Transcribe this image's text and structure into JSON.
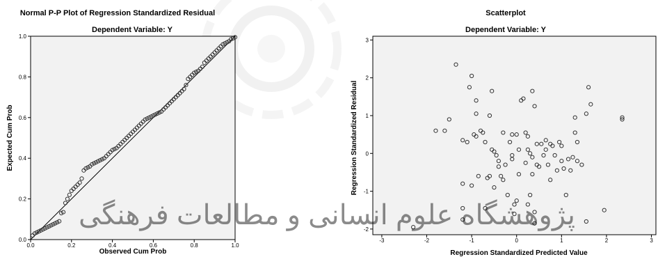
{
  "chart_data": [
    {
      "type": "scatter",
      "title": "Normal P-P Plot of Regression Standardized Residual",
      "subtitle": "Dependent Variable: Y",
      "xlabel": "Observed Cum Prob",
      "ylabel": "Expected Cum Prob",
      "xlim": [
        0,
        1
      ],
      "ylim": [
        0,
        1
      ],
      "xticks": [
        "0.0",
        "0.2",
        "0.4",
        "0.6",
        "0.8",
        "1.0"
      ],
      "yticks": [
        "0.0",
        "0.2",
        "0.4",
        "0.6",
        "0.8",
        "1.0"
      ],
      "grid": false,
      "reference_line": [
        [
          0,
          0
        ],
        [
          1,
          1
        ]
      ],
      "background": "#f2f2f2",
      "points": [
        [
          0.01,
          0.02
        ],
        [
          0.02,
          0.03
        ],
        [
          0.03,
          0.035
        ],
        [
          0.04,
          0.04
        ],
        [
          0.05,
          0.045
        ],
        [
          0.06,
          0.05
        ],
        [
          0.07,
          0.055
        ],
        [
          0.08,
          0.06
        ],
        [
          0.09,
          0.065
        ],
        [
          0.1,
          0.07
        ],
        [
          0.11,
          0.075
        ],
        [
          0.12,
          0.08
        ],
        [
          0.13,
          0.085
        ],
        [
          0.14,
          0.09
        ],
        [
          0.15,
          0.13
        ],
        [
          0.16,
          0.135
        ],
        [
          0.17,
          0.18
        ],
        [
          0.18,
          0.2
        ],
        [
          0.19,
          0.22
        ],
        [
          0.2,
          0.24
        ],
        [
          0.21,
          0.25
        ],
        [
          0.22,
          0.26
        ],
        [
          0.23,
          0.27
        ],
        [
          0.24,
          0.28
        ],
        [
          0.25,
          0.3
        ],
        [
          0.26,
          0.34
        ],
        [
          0.27,
          0.35
        ],
        [
          0.28,
          0.355
        ],
        [
          0.29,
          0.36
        ],
        [
          0.3,
          0.37
        ],
        [
          0.31,
          0.375
        ],
        [
          0.32,
          0.38
        ],
        [
          0.33,
          0.385
        ],
        [
          0.34,
          0.39
        ],
        [
          0.35,
          0.395
        ],
        [
          0.36,
          0.4
        ],
        [
          0.37,
          0.41
        ],
        [
          0.38,
          0.42
        ],
        [
          0.39,
          0.43
        ],
        [
          0.4,
          0.44
        ],
        [
          0.41,
          0.445
        ],
        [
          0.42,
          0.45
        ],
        [
          0.43,
          0.46
        ],
        [
          0.44,
          0.47
        ],
        [
          0.45,
          0.48
        ],
        [
          0.46,
          0.49
        ],
        [
          0.47,
          0.5
        ],
        [
          0.48,
          0.51
        ],
        [
          0.49,
          0.52
        ],
        [
          0.5,
          0.53
        ],
        [
          0.51,
          0.54
        ],
        [
          0.52,
          0.55
        ],
        [
          0.53,
          0.56
        ],
        [
          0.54,
          0.57
        ],
        [
          0.55,
          0.58
        ],
        [
          0.56,
          0.59
        ],
        [
          0.57,
          0.595
        ],
        [
          0.58,
          0.6
        ],
        [
          0.59,
          0.605
        ],
        [
          0.6,
          0.61
        ],
        [
          0.61,
          0.615
        ],
        [
          0.62,
          0.62
        ],
        [
          0.63,
          0.625
        ],
        [
          0.64,
          0.63
        ],
        [
          0.65,
          0.64
        ],
        [
          0.66,
          0.65
        ],
        [
          0.67,
          0.66
        ],
        [
          0.68,
          0.67
        ],
        [
          0.69,
          0.68
        ],
        [
          0.7,
          0.69
        ],
        [
          0.71,
          0.7
        ],
        [
          0.72,
          0.71
        ],
        [
          0.73,
          0.72
        ],
        [
          0.74,
          0.73
        ],
        [
          0.75,
          0.74
        ],
        [
          0.76,
          0.76
        ],
        [
          0.77,
          0.79
        ],
        [
          0.78,
          0.8
        ],
        [
          0.79,
          0.81
        ],
        [
          0.8,
          0.82
        ],
        [
          0.81,
          0.825
        ],
        [
          0.82,
          0.83
        ],
        [
          0.83,
          0.84
        ],
        [
          0.84,
          0.85
        ],
        [
          0.85,
          0.87
        ],
        [
          0.86,
          0.88
        ],
        [
          0.87,
          0.89
        ],
        [
          0.88,
          0.9
        ],
        [
          0.89,
          0.91
        ],
        [
          0.9,
          0.92
        ],
        [
          0.91,
          0.93
        ],
        [
          0.92,
          0.94
        ],
        [
          0.93,
          0.95
        ],
        [
          0.94,
          0.96
        ],
        [
          0.95,
          0.965
        ],
        [
          0.96,
          0.97
        ],
        [
          0.97,
          0.975
        ],
        [
          0.98,
          0.985
        ],
        [
          0.99,
          0.99
        ],
        [
          1.0,
          0.995
        ]
      ]
    },
    {
      "type": "scatter",
      "title": "Scatterplot",
      "subtitle": "Dependent Variable: Y",
      "xlabel": "Regression Standardized Predicted Value",
      "ylabel": "Regression Standardized Residual",
      "xlim": [
        -3.2,
        3.1
      ],
      "ylim": [
        -2.15,
        3.1
      ],
      "xticks": [
        -3,
        -2,
        -1,
        0,
        1,
        2,
        3
      ],
      "yticks": [
        -2,
        -1,
        0,
        1,
        2,
        3
      ],
      "grid": false,
      "background": "#f2f2f2",
      "points": [
        [
          -2.3,
          -1.95
        ],
        [
          -1.8,
          0.6
        ],
        [
          -1.5,
          0.9
        ],
        [
          -1.35,
          2.35
        ],
        [
          -1.2,
          0.35
        ],
        [
          -1.1,
          0.3
        ],
        [
          -1.2,
          -0.8
        ],
        [
          -1.2,
          -1.45
        ],
        [
          -1.2,
          -1.75
        ],
        [
          -1.0,
          -0.85
        ],
        [
          -0.95,
          0.5
        ],
        [
          -0.9,
          0.45
        ],
        [
          -0.9,
          1.05
        ],
        [
          -0.9,
          1.4
        ],
        [
          -0.85,
          -0.6
        ],
        [
          -0.8,
          0.6
        ],
        [
          -0.75,
          0.55
        ],
        [
          -0.7,
          0.3
        ],
        [
          -0.7,
          -1.45
        ],
        [
          -0.65,
          -0.65
        ],
        [
          -0.6,
          1.0
        ],
        [
          -0.55,
          0.1
        ],
        [
          -0.5,
          0.05
        ],
        [
          -0.5,
          -0.9
        ],
        [
          -0.45,
          -0.05
        ],
        [
          -0.4,
          -0.35
        ],
        [
          -0.35,
          -0.6
        ],
        [
          -0.3,
          0.55
        ],
        [
          -0.25,
          -0.3
        ],
        [
          -0.2,
          -1.1
        ],
        [
          -0.15,
          0.3
        ],
        [
          -0.1,
          -0.05
        ],
        [
          -0.1,
          0.5
        ],
        [
          -0.05,
          -1.35
        ],
        [
          -0.05,
          -1.6
        ],
        [
          0.0,
          -1.25
        ],
        [
          0.05,
          0.1
        ],
        [
          0.1,
          1.4
        ],
        [
          0.15,
          1.45
        ],
        [
          0.2,
          0.55
        ],
        [
          0.2,
          -0.25
        ],
        [
          0.25,
          0.45
        ],
        [
          0.25,
          0.1
        ],
        [
          0.3,
          -1.1
        ],
        [
          0.3,
          0.0
        ],
        [
          0.35,
          -0.1
        ],
        [
          0.35,
          -0.55
        ],
        [
          0.35,
          1.65
        ],
        [
          0.4,
          1.25
        ],
        [
          0.4,
          -1.55
        ],
        [
          0.45,
          0.25
        ],
        [
          0.45,
          -0.3
        ],
        [
          0.5,
          -0.35
        ],
        [
          0.55,
          0.25
        ],
        [
          0.6,
          -0.05
        ],
        [
          0.65,
          0.35
        ],
        [
          0.65,
          0.1
        ],
        [
          0.7,
          -0.3
        ],
        [
          0.75,
          -0.7
        ],
        [
          0.75,
          0.25
        ],
        [
          0.8,
          0.2
        ],
        [
          0.85,
          -0.05
        ],
        [
          0.9,
          -0.45
        ],
        [
          0.95,
          0.3
        ],
        [
          1.0,
          -0.2
        ],
        [
          1.05,
          -0.4
        ],
        [
          1.1,
          -1.1
        ],
        [
          1.15,
          -0.15
        ],
        [
          1.2,
          -0.45
        ],
        [
          1.25,
          -0.1
        ],
        [
          1.3,
          0.95
        ],
        [
          1.3,
          0.55
        ],
        [
          1.35,
          0.3
        ],
        [
          1.35,
          -0.2
        ],
        [
          1.45,
          -0.3
        ],
        [
          1.55,
          1.05
        ],
        [
          1.6,
          1.75
        ],
        [
          1.65,
          1.3
        ],
        [
          1.55,
          -1.8
        ],
        [
          1.95,
          -1.5
        ],
        [
          -0.6,
          -0.6
        ],
        [
          -0.4,
          -0.2
        ],
        [
          0.05,
          -0.55
        ],
        [
          0.4,
          -1.85
        ],
        [
          -1.05,
          1.75
        ],
        [
          -1.0,
          2.05
        ],
        [
          -0.55,
          1.65
        ],
        [
          0.0,
          0.5
        ],
        [
          2.35,
          0.9
        ],
        [
          2.35,
          0.95
        ],
        [
          -1.6,
          0.6
        ],
        [
          -0.3,
          -0.7
        ],
        [
          0.25,
          -1.35
        ],
        [
          1.0,
          0.2
        ],
        [
          -0.1,
          -0.15
        ]
      ]
    }
  ],
  "watermark": {
    "text": "پژوهشگاه علوم انسانی و مطالعات فرهنگی"
  }
}
